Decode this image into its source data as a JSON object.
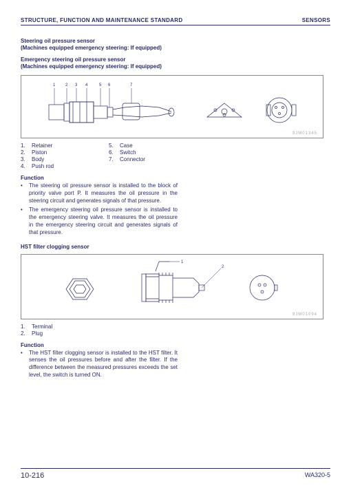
{
  "header": {
    "left": "STRUCTURE, FUNCTION AND MAINTENANCE STANDARD",
    "right": "SENSORS"
  },
  "s1": {
    "t1": "Steering oil pressure sensor",
    "t2": "(Machines equipped emergency steering: If equipped)",
    "t3": "Emergency steering oil pressure sensor",
    "t4": "(Machines equipped emergency steering: If equipped)"
  },
  "fig1": {
    "code": "9JM01345",
    "callouts": [
      "1",
      "2",
      "3",
      "4",
      "5",
      "6",
      "7"
    ]
  },
  "legend1": {
    "l": [
      [
        "1.",
        "Retainer"
      ],
      [
        "2.",
        "Piston"
      ],
      [
        "3.",
        "Body"
      ],
      [
        "4.",
        "Push rod"
      ]
    ],
    "r": [
      [
        "5.",
        "Case"
      ],
      [
        "6.",
        "Switch"
      ],
      [
        "7.",
        "Connector"
      ]
    ]
  },
  "func1": {
    "h": "Function",
    "items": [
      "The steering oil pressure sensor is installed to the block of priority valve port P.  It measures the oil pressure in the steering circuit and generates signals of that pressure.",
      "The emergency steering oil pressure sensor is installed to the emergency steering valve.  It measures the oil pressure in the emergency steering circuit and generates signals of that pressure."
    ]
  },
  "s2": {
    "t": "HST filter clogging sensor"
  },
  "fig2": {
    "code": "9JM01094",
    "callouts": [
      "1",
      "2"
    ]
  },
  "legend2": {
    "l": [
      [
        "1.",
        "Terminal"
      ],
      [
        "2.",
        "Plug"
      ]
    ]
  },
  "func2": {
    "h": "Function",
    "items": [
      "The HST filter clogging sensor is installed to the HST filter.  It senses the oil pressures before and after the filter.  If the difference between the measured pressures exceeds the set level, the switch is turned ON."
    ]
  },
  "footer": {
    "l": "10-216",
    "r": "WA320-5"
  }
}
